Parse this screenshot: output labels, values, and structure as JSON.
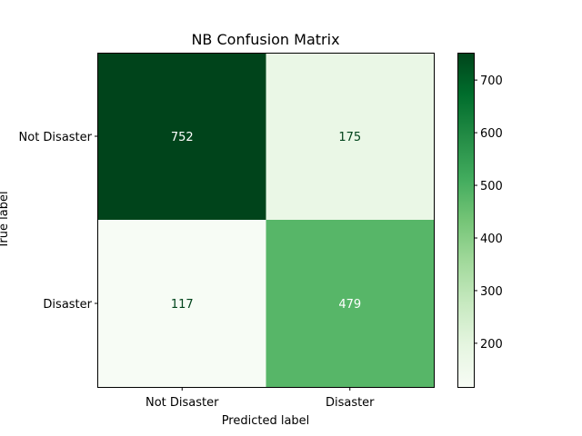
{
  "chart_data": {
    "type": "heatmap",
    "title": "NB Confusion Matrix",
    "xlabel": "Predicted label",
    "ylabel": "True label",
    "x_categories": [
      "Not Disaster",
      "Disaster"
    ],
    "y_categories": [
      "Not Disaster",
      "Disaster"
    ],
    "values": [
      [
        752,
        175
      ],
      [
        117,
        479
      ]
    ],
    "colormap": "Greens",
    "colorbar": {
      "range": [
        117,
        752
      ],
      "ticks": [
        200,
        300,
        400,
        500,
        600,
        700
      ]
    },
    "colors": {
      "high": "#00441b",
      "low": "#f7fcf5",
      "text_on_dark": "#ffffff",
      "text_on_light": "#00441b"
    },
    "grid": false,
    "legend": "none"
  }
}
